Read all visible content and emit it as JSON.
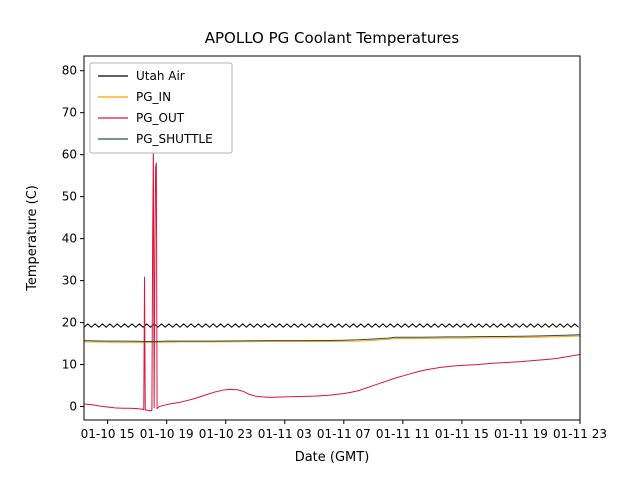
{
  "figure": {
    "background": "#ffffff"
  },
  "chart_data": {
    "type": "line",
    "title": "APOLLO PG Coolant Temperatures",
    "xlabel": "Date (GMT)",
    "ylabel": "Temperature (C)",
    "x_unit": "hours since 01-10 00:00 GMT",
    "xlim": [
      13.4,
      47
    ],
    "ylim": [
      -3.2,
      83.5
    ],
    "grid": false,
    "xticks": [
      {
        "t": 15,
        "label": "01-10 15"
      },
      {
        "t": 19,
        "label": "01-10 19"
      },
      {
        "t": 23,
        "label": "01-10 23"
      },
      {
        "t": 27,
        "label": "01-11 03"
      },
      {
        "t": 31,
        "label": "01-11 07"
      },
      {
        "t": 35,
        "label": "01-11 11"
      },
      {
        "t": 39,
        "label": "01-11 15"
      },
      {
        "t": 43,
        "label": "01-11 19"
      },
      {
        "t": 47,
        "label": "01-11 23"
      }
    ],
    "yticks": [
      0,
      10,
      20,
      30,
      40,
      50,
      60,
      70,
      80
    ],
    "legend": {
      "position": "upper left",
      "entries": [
        "Utah Air",
        "PG_IN",
        "PG_OUT",
        "PG_SHUTTLE"
      ]
    },
    "series": [
      {
        "name": "Utah Air",
        "color": "#000000",
        "style": "zigzag",
        "base": 19.3,
        "amplitude": 0.4,
        "step_hours": 0.25
      },
      {
        "name": "PG_IN",
        "color": "#ffa500",
        "style": "line",
        "points": [
          [
            13.4,
            15.4
          ],
          [
            15,
            15.35
          ],
          [
            16,
            15.3
          ],
          [
            17,
            15.3
          ],
          [
            18,
            15.3
          ],
          [
            19,
            15.35
          ],
          [
            20,
            15.4
          ],
          [
            22,
            15.4
          ],
          [
            24,
            15.45
          ],
          [
            26,
            15.5
          ],
          [
            28,
            15.5
          ],
          [
            30,
            15.5
          ],
          [
            31,
            15.55
          ],
          [
            32,
            15.6
          ],
          [
            33,
            15.8
          ],
          [
            34,
            16.0
          ],
          [
            34.5,
            16.2
          ],
          [
            35,
            16.2
          ],
          [
            36,
            16.2
          ],
          [
            37,
            16.25
          ],
          [
            38,
            16.3
          ],
          [
            39,
            16.3
          ],
          [
            40,
            16.35
          ],
          [
            41,
            16.4
          ],
          [
            42,
            16.4
          ],
          [
            43,
            16.45
          ],
          [
            44,
            16.5
          ],
          [
            45,
            16.6
          ],
          [
            46,
            16.7
          ],
          [
            47,
            16.8
          ]
        ]
      },
      {
        "name": "PG_OUT",
        "color": "#dc143c",
        "style": "line",
        "points": [
          [
            13.4,
            0.6
          ],
          [
            14,
            0.4
          ],
          [
            14.5,
            0.1
          ],
          [
            15,
            -0.1
          ],
          [
            15.5,
            -0.3
          ],
          [
            16,
            -0.4
          ],
          [
            16.5,
            -0.4
          ],
          [
            17,
            -0.5
          ],
          [
            17.3,
            -0.6
          ],
          [
            17.45,
            -0.7
          ],
          [
            17.5,
            30.8
          ],
          [
            17.55,
            -0.8
          ],
          [
            17.9,
            -1.0
          ],
          [
            18.0,
            -0.9
          ],
          [
            18.05,
            40
          ],
          [
            18.1,
            62
          ],
          [
            18.15,
            -0.3
          ],
          [
            18.2,
            36
          ],
          [
            18.25,
            57
          ],
          [
            18.3,
            58
          ],
          [
            18.35,
            -0.5
          ],
          [
            18.5,
            0.0
          ],
          [
            18.8,
            0.3
          ],
          [
            19.2,
            0.6
          ],
          [
            20,
            1.1
          ],
          [
            20.8,
            1.8
          ],
          [
            21.5,
            2.6
          ],
          [
            22.2,
            3.4
          ],
          [
            22.8,
            3.9
          ],
          [
            23.2,
            4.1
          ],
          [
            23.8,
            4.0
          ],
          [
            24.2,
            3.6
          ],
          [
            24.6,
            2.9
          ],
          [
            25,
            2.5
          ],
          [
            25.5,
            2.3
          ],
          [
            26,
            2.2
          ],
          [
            27,
            2.3
          ],
          [
            28,
            2.4
          ],
          [
            29,
            2.5
          ],
          [
            30,
            2.7
          ],
          [
            30.5,
            2.9
          ],
          [
            31,
            3.1
          ],
          [
            31.5,
            3.4
          ],
          [
            32,
            3.8
          ],
          [
            32.5,
            4.4
          ],
          [
            33,
            5.0
          ],
          [
            33.5,
            5.6
          ],
          [
            34,
            6.2
          ],
          [
            34.5,
            6.8
          ],
          [
            35,
            7.3
          ],
          [
            35.5,
            7.8
          ],
          [
            36,
            8.3
          ],
          [
            36.5,
            8.7
          ],
          [
            37,
            9.0
          ],
          [
            37.5,
            9.3
          ],
          [
            38,
            9.5
          ],
          [
            38.5,
            9.7
          ],
          [
            39,
            9.8
          ],
          [
            40,
            10.0
          ],
          [
            41,
            10.3
          ],
          [
            42,
            10.5
          ],
          [
            43,
            10.7
          ],
          [
            44,
            11.0
          ],
          [
            45,
            11.3
          ],
          [
            45.5,
            11.5
          ],
          [
            46,
            11.8
          ],
          [
            46.5,
            12.1
          ],
          [
            47,
            12.4
          ]
        ]
      },
      {
        "name": "PG_SHUTTLE",
        "color": "#2f4f4f",
        "style": "line",
        "points": [
          [
            13.4,
            15.7
          ],
          [
            15,
            15.6
          ],
          [
            16,
            15.6
          ],
          [
            17,
            15.55
          ],
          [
            17.6,
            15.5
          ],
          [
            18.2,
            15.5
          ],
          [
            19,
            15.6
          ],
          [
            20,
            15.6
          ],
          [
            22,
            15.6
          ],
          [
            24,
            15.65
          ],
          [
            26,
            15.7
          ],
          [
            28,
            15.7
          ],
          [
            30,
            15.75
          ],
          [
            31,
            15.8
          ],
          [
            32,
            15.9
          ],
          [
            33,
            16.1
          ],
          [
            34,
            16.3
          ],
          [
            34.5,
            16.5
          ],
          [
            35,
            16.5
          ],
          [
            36,
            16.5
          ],
          [
            37,
            16.55
          ],
          [
            38,
            16.6
          ],
          [
            39,
            16.6
          ],
          [
            40,
            16.65
          ],
          [
            41,
            16.7
          ],
          [
            42,
            16.7
          ],
          [
            43,
            16.75
          ],
          [
            44,
            16.8
          ],
          [
            45,
            16.9
          ],
          [
            46,
            17.0
          ],
          [
            47,
            17.1
          ]
        ]
      }
    ]
  }
}
